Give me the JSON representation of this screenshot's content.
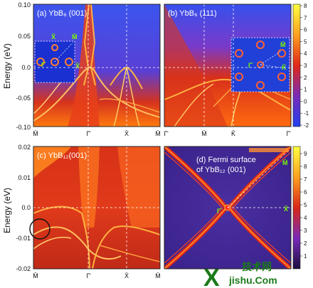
{
  "chart_data": [
    {
      "type": "heatmap",
      "panel_label": "(a) YbB₆ (001)",
      "ylabel": "Energy (eV)",
      "ylim": [
        -0.1,
        0.1
      ],
      "y_ticks": [
        "0.10",
        "0.05",
        "0.0",
        "-0.05",
        "-0.10"
      ],
      "x_ticks": [
        "M̄",
        "Γ̄",
        "X̄",
        "M̄"
      ],
      "inset_labels": [
        "X̄",
        "M̄",
        "Γ̄",
        "X̄"
      ],
      "colorbar": {
        "range": [
          -2,
          8
        ],
        "ticks": [
          "8",
          "7",
          "6",
          "5",
          "4",
          "3",
          "2",
          "1",
          "0",
          "-1",
          "-2"
        ]
      }
    },
    {
      "type": "heatmap",
      "panel_label": "(b) YbB₆ (111)",
      "ylim": [
        -0.1,
        0.1
      ],
      "x_ticks": [
        "Γ̄",
        "M̄",
        "K̄",
        "Γ̄"
      ],
      "inset_labels": [
        "M̄",
        "Γ̄",
        "K̄"
      ]
    },
    {
      "type": "heatmap",
      "panel_label": "(c) YbB₁₂(001)",
      "ylabel": "Energy (eV)",
      "ylim": [
        -0.02,
        0.02
      ],
      "y_ticks": [
        "0.02",
        "0.01",
        "0.0",
        "-0.01",
        "-0.02"
      ],
      "x_ticks": [
        "M̄",
        "Γ̄",
        "X̄",
        "M̄"
      ]
    },
    {
      "type": "heatmap",
      "panel_label_line1": "(d) Fermi surface",
      "panel_label_line2": "of YbB₁₂ (001)",
      "point_labels": [
        "M̄",
        "Γ̄",
        "X̄"
      ],
      "colorbar": {
        "ticks": [
          "9",
          "8",
          "7",
          "6",
          "5",
          "4",
          "3",
          "2",
          "1"
        ]
      }
    }
  ],
  "watermark": {
    "letter": "X",
    "chinese": "技术网",
    "domain": "jishu.Com"
  }
}
